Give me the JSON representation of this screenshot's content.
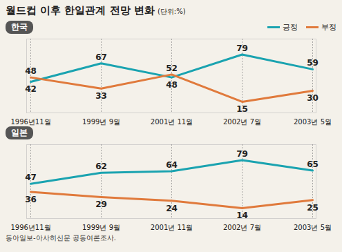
{
  "title": "월드컵 이후 한일관계 전망 변화",
  "subtitle": "(단위:%)",
  "caption": "동아일보-아사히신문 공동여론조사.",
  "chart_data": [
    {
      "type": "line",
      "title": "한국",
      "categories": [
        "1996년11월",
        "1999년 9월",
        "2001년 11월",
        "2002년 7월",
        "2003년 5월"
      ],
      "series": [
        {
          "name": "긍정",
          "color": "#1aa3b0",
          "values": [
            42,
            67,
            48,
            79,
            59
          ]
        },
        {
          "name": "부정",
          "color": "#e07a3c",
          "values": [
            48,
            33,
            52,
            15,
            30
          ]
        }
      ],
      "ylim": [
        0,
        100
      ],
      "yticks": [],
      "data_labels": true,
      "tick_labels": "x",
      "legend": "top-right"
    },
    {
      "type": "line",
      "title": "일본",
      "categories": [
        "1996년11월",
        "1999년 9월",
        "2001년 11월",
        "2002년 7월",
        "2003년 5월"
      ],
      "series": [
        {
          "name": "긍정",
          "color": "#1aa3b0",
          "values": [
            47,
            62,
            64,
            79,
            65
          ]
        },
        {
          "name": "부정",
          "color": "#e07a3c",
          "values": [
            36,
            29,
            24,
            14,
            25
          ]
        }
      ],
      "ylim": [
        0,
        100
      ],
      "yticks": [],
      "data_labels": true,
      "tick_labels": "x"
    }
  ]
}
